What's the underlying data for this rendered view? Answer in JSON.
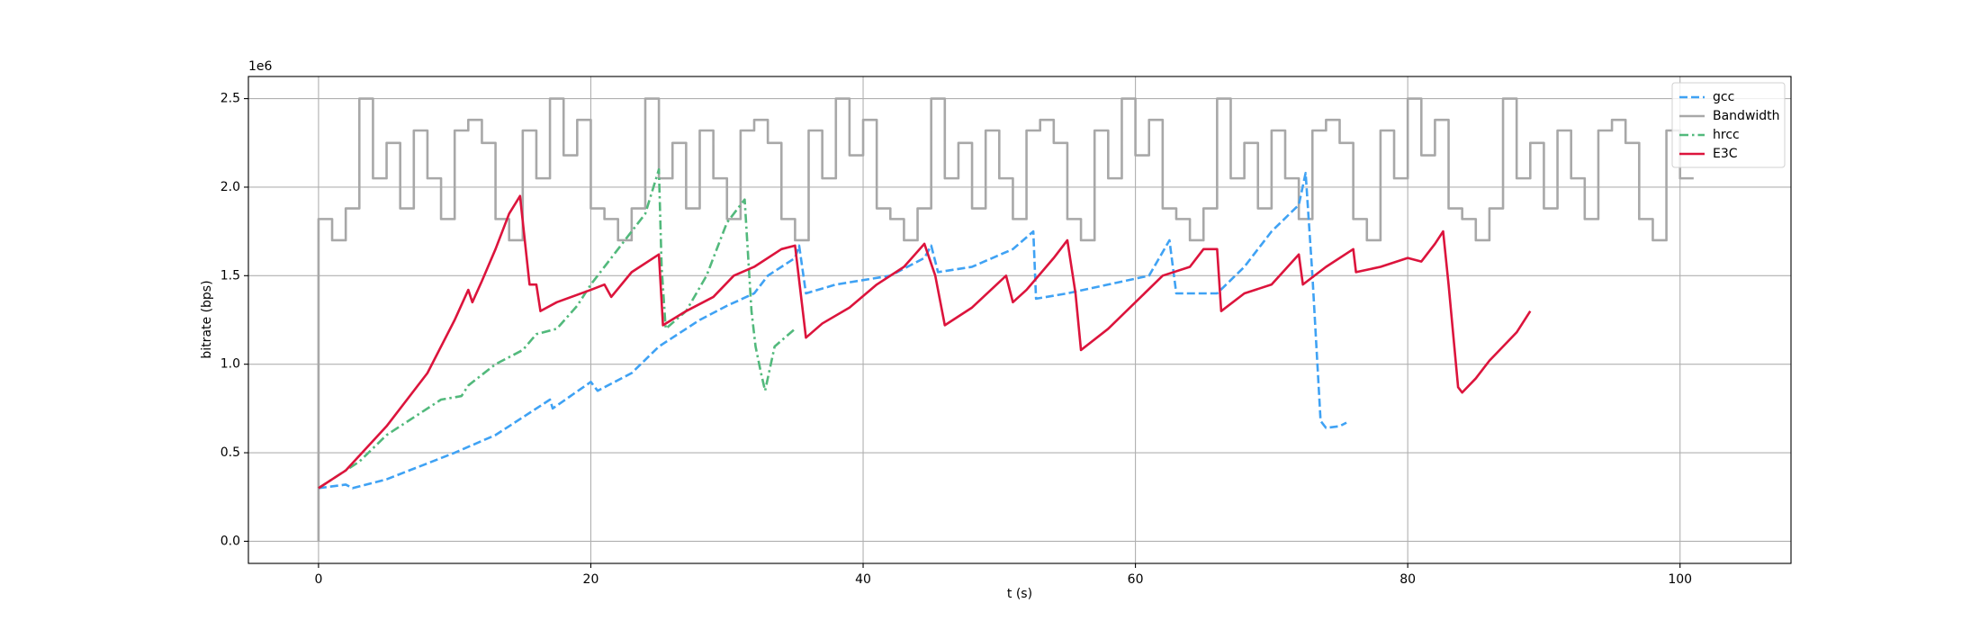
{
  "chart_data": {
    "type": "line",
    "xlabel": "t (s)",
    "ylabel": "bitrate (bps)",
    "y_offset_text": "1e6",
    "xlim": [
      -5.15,
      108.15
    ],
    "ylim": [
      -125000,
      2625000
    ],
    "xticks": [
      0,
      20,
      40,
      60,
      80,
      100
    ],
    "yticks": [
      {
        "value": 0,
        "label": "0.0"
      },
      {
        "value": 500000,
        "label": "0.5"
      },
      {
        "value": 1000000,
        "label": "1.0"
      },
      {
        "value": 1500000,
        "label": "1.5"
      },
      {
        "value": 2000000,
        "label": "2.0"
      },
      {
        "value": 2500000,
        "label": "2.5"
      }
    ],
    "grid": true,
    "legend": "upper right",
    "series": [
      {
        "name": "gcc",
        "color": "#3fa2f4",
        "linestyle": "dashed",
        "x": [
          0,
          2,
          2.5,
          5,
          10,
          13,
          17,
          17.2,
          20,
          20.5,
          23,
          25,
          28,
          30,
          32,
          33,
          35,
          35.3,
          35.8,
          38,
          42,
          44.5,
          45,
          45.5,
          48,
          51,
          52.5,
          52.7,
          55,
          58,
          61,
          62.5,
          63,
          66,
          68,
          70,
          72,
          72.5,
          73,
          73.6,
          74,
          75,
          75.5
        ],
        "values": [
          300000,
          320000,
          300000,
          350000,
          500000,
          600000,
          800000,
          750000,
          900000,
          850000,
          950000,
          1100000,
          1250000,
          1330000,
          1400000,
          1500000,
          1600000,
          1670000,
          1400000,
          1450000,
          1500000,
          1600000,
          1670000,
          1520000,
          1550000,
          1650000,
          1750000,
          1370000,
          1400000,
          1450000,
          1500000,
          1700000,
          1400000,
          1400000,
          1550000,
          1750000,
          1900000,
          2080000,
          1500000,
          680000,
          640000,
          650000,
          670000
        ]
      },
      {
        "name": "Bandwidth",
        "color": "#a8a8a8",
        "linestyle": "steps",
        "x": [
          0,
          0,
          1,
          2,
          3,
          4,
          5,
          6,
          7,
          8,
          9,
          10,
          11,
          12,
          13,
          14,
          15,
          16,
          17,
          18,
          19,
          20,
          21,
          22,
          23,
          24,
          25,
          26,
          27,
          28,
          29,
          30,
          31,
          32,
          33,
          34,
          35,
          36,
          37,
          38,
          39,
          40,
          41,
          42,
          43,
          44,
          45,
          46,
          47,
          48,
          49,
          50,
          51,
          52,
          53,
          54,
          55,
          56,
          57,
          58,
          59,
          60,
          61,
          62,
          63,
          64,
          65,
          66,
          67,
          68,
          69,
          70,
          71,
          72,
          73,
          74,
          75,
          76,
          77,
          78,
          79,
          80,
          81,
          82,
          83,
          84,
          85,
          86,
          87,
          88,
          89,
          90,
          91,
          92,
          93,
          94,
          95,
          96,
          97,
          98,
          99,
          100,
          101
        ],
        "values": [
          0,
          1820000,
          1700000,
          1880000,
          2500000,
          2050000,
          2250000,
          1880000,
          2320000,
          2050000,
          1820000,
          2320000,
          2380000,
          2250000,
          1820000,
          1700000,
          2320000,
          2050000,
          2500000,
          2180000,
          2380000,
          1880000,
          1820000,
          1700000,
          1880000,
          2500000,
          2050000,
          2250000,
          1880000,
          2320000,
          2050000,
          1820000,
          2320000,
          2380000,
          2250000,
          1820000,
          1700000,
          2320000,
          2050000,
          2500000,
          2180000,
          2380000,
          1880000,
          1820000,
          1700000,
          1880000,
          2500000,
          2050000,
          2250000,
          1880000,
          2320000,
          2050000,
          1820000,
          2320000,
          2380000,
          2250000,
          1820000,
          1700000,
          2320000,
          2050000,
          2500000,
          2180000,
          2380000,
          1880000,
          1820000,
          1700000,
          1880000,
          2500000,
          2050000,
          2250000,
          1880000,
          2320000,
          2050000,
          1820000,
          2320000,
          2380000,
          2250000,
          1820000,
          1700000,
          2320000,
          2050000,
          2500000,
          2180000,
          2380000,
          1880000,
          1820000,
          1700000,
          1880000,
          2500000,
          2050000,
          2250000,
          1880000,
          2320000,
          2050000,
          1820000,
          2320000,
          2380000,
          2250000,
          1820000,
          1700000,
          2320000,
          2050000,
          2050000
        ]
      },
      {
        "name": "hrcc",
        "color": "#52b97c",
        "linestyle": "dashdot",
        "x": [
          0,
          3,
          5,
          7,
          9,
          10.5,
          11,
          13,
          15,
          16,
          17.5,
          19,
          20,
          22,
          24,
          25,
          25.2,
          25.5,
          27,
          28.5,
          30,
          31.3,
          31.8,
          32.1,
          32.5,
          32.8,
          33.5,
          35
        ],
        "values": [
          300000,
          450000,
          600000,
          700000,
          800000,
          820000,
          880000,
          1000000,
          1080000,
          1170000,
          1200000,
          1330000,
          1450000,
          1650000,
          1850000,
          2100000,
          1550000,
          1200000,
          1300000,
          1500000,
          1800000,
          1930000,
          1300000,
          1100000,
          950000,
          850000,
          1100000,
          1200000
        ]
      },
      {
        "name": "E3C",
        "color": "#dc143c",
        "linestyle": "solid",
        "x": [
          0,
          2,
          5,
          8,
          10,
          11,
          11.3,
          12,
          13,
          14,
          14.8,
          15.5,
          16,
          16.3,
          17.5,
          20,
          21,
          21.5,
          23,
          25,
          25.3,
          27,
          29,
          30.5,
          32,
          34,
          35,
          35.8,
          37,
          39,
          41,
          43,
          44.5,
          45.3,
          46,
          48,
          50.5,
          51,
          52,
          54,
          55,
          55.6,
          56,
          58,
          60,
          62,
          64,
          65,
          66,
          66.3,
          68,
          70,
          72,
          72.3,
          74,
          76,
          76.2,
          78,
          80,
          81,
          82,
          82.6,
          83,
          83.7,
          84,
          85,
          86,
          88,
          89
        ],
        "values": [
          300000,
          400000,
          650000,
          950000,
          1250000,
          1420000,
          1350000,
          1470000,
          1650000,
          1850000,
          1950000,
          1450000,
          1450000,
          1300000,
          1350000,
          1420000,
          1450000,
          1380000,
          1520000,
          1620000,
          1220000,
          1300000,
          1380000,
          1500000,
          1550000,
          1650000,
          1670000,
          1150000,
          1230000,
          1320000,
          1450000,
          1550000,
          1680000,
          1500000,
          1220000,
          1320000,
          1500000,
          1350000,
          1420000,
          1600000,
          1700000,
          1400000,
          1080000,
          1200000,
          1350000,
          1500000,
          1550000,
          1650000,
          1650000,
          1300000,
          1400000,
          1450000,
          1620000,
          1450000,
          1550000,
          1650000,
          1520000,
          1550000,
          1600000,
          1580000,
          1680000,
          1750000,
          1450000,
          870000,
          840000,
          920000,
          1020000,
          1180000,
          1300000
        ]
      }
    ]
  }
}
